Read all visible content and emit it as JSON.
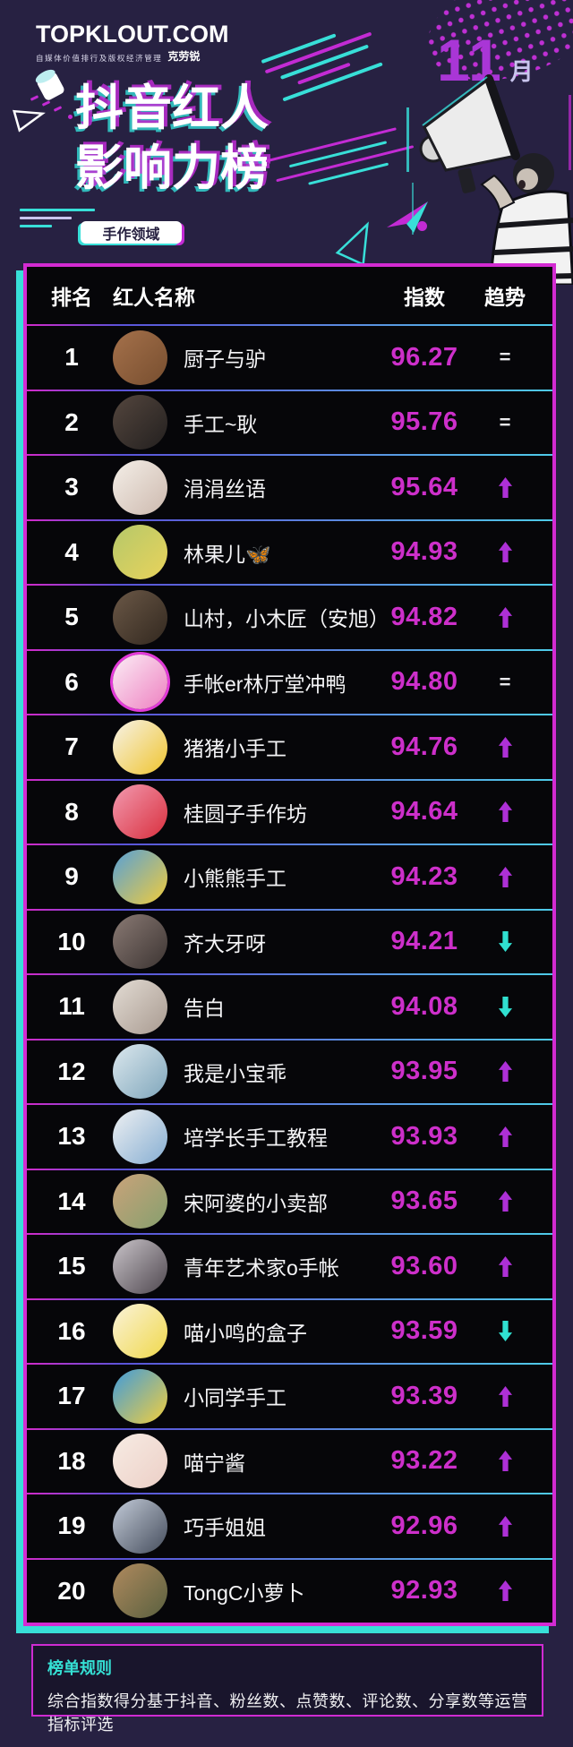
{
  "header": {
    "brand": "TOPKLOUT.COM",
    "brand_tagline": "自媒体价值排行及版权经济管理",
    "brand_suffix": "克劳锐",
    "month_number": "11",
    "month_unit": "月",
    "title_line1": "抖音红人",
    "title_line2": "影响力榜",
    "category_tag": "手作领域"
  },
  "table": {
    "headers": {
      "rank": "排名",
      "name": "红人名称",
      "index": "指数",
      "trend": "趋势"
    },
    "rows": [
      {
        "rank": "1",
        "name": "厨子与驴",
        "index": "96.27",
        "trend": "flat",
        "avatar_colors": [
          "#a5714b",
          "#774e2f"
        ],
        "ring": false
      },
      {
        "rank": "2",
        "name": "手工~耿",
        "index": "95.76",
        "trend": "flat",
        "avatar_colors": [
          "#54463e",
          "#23201f"
        ],
        "ring": false
      },
      {
        "rank": "3",
        "name": "涓涓丝语",
        "index": "95.64",
        "trend": "up",
        "avatar_colors": [
          "#f4efe8",
          "#cdb9ae"
        ],
        "ring": false
      },
      {
        "rank": "4",
        "name": "林果儿🦋",
        "index": "94.93",
        "trend": "up",
        "avatar_colors": [
          "#b5c86a",
          "#e9d35b"
        ],
        "ring": false
      },
      {
        "rank": "5",
        "name": "山村，小木匠（安旭）",
        "index": "94.82",
        "trend": "up",
        "avatar_colors": [
          "#6b5847",
          "#32281f"
        ],
        "ring": false
      },
      {
        "rank": "6",
        "name": "手帐er林厅堂冲鸭",
        "index": "94.80",
        "trend": "flat",
        "avatar_colors": [
          "#fbeef6",
          "#ee7fc0"
        ],
        "ring": true
      },
      {
        "rank": "7",
        "name": "猪猪小手工",
        "index": "94.76",
        "trend": "up",
        "avatar_colors": [
          "#f7f3e9",
          "#efc42e"
        ],
        "ring": false
      },
      {
        "rank": "8",
        "name": "桂圆子手作坊",
        "index": "94.64",
        "trend": "up",
        "avatar_colors": [
          "#f29ab0",
          "#d92f3d"
        ],
        "ring": false
      },
      {
        "rank": "9",
        "name": "小熊熊手工",
        "index": "94.23",
        "trend": "up",
        "avatar_colors": [
          "#56a0d8",
          "#f2cc3b"
        ],
        "ring": false
      },
      {
        "rank": "10",
        "name": "齐大牙呀",
        "index": "94.21",
        "trend": "down",
        "avatar_colors": [
          "#8a7a74",
          "#3c3432"
        ],
        "ring": false
      },
      {
        "rank": "11",
        "name": "告白",
        "index": "94.08",
        "trend": "down",
        "avatar_colors": [
          "#e3dcd4",
          "#a89a90"
        ],
        "ring": false
      },
      {
        "rank": "12",
        "name": "我是小宝乖",
        "index": "93.95",
        "trend": "up",
        "avatar_colors": [
          "#dce8ee",
          "#7fa6bb"
        ],
        "ring": false
      },
      {
        "rank": "13",
        "name": "培学长手工教程",
        "index": "93.93",
        "trend": "up",
        "avatar_colors": [
          "#eef0f2",
          "#86aed2"
        ],
        "ring": false
      },
      {
        "rank": "14",
        "name": "宋阿婆的小卖部",
        "index": "93.65",
        "trend": "up",
        "avatar_colors": [
          "#caa27a",
          "#86a06e"
        ],
        "ring": false
      },
      {
        "rank": "15",
        "name": "青年艺术家o手帐",
        "index": "93.60",
        "trend": "up",
        "avatar_colors": [
          "#c9c4c9",
          "#4f474f"
        ],
        "ring": false
      },
      {
        "rank": "16",
        "name": "喵小鸣的盒子",
        "index": "93.59",
        "trend": "down",
        "avatar_colors": [
          "#faf3da",
          "#f0d84a"
        ],
        "ring": false
      },
      {
        "rank": "17",
        "name": "小同学手工",
        "index": "93.39",
        "trend": "up",
        "avatar_colors": [
          "#3f9bdc",
          "#f3cf3d"
        ],
        "ring": false
      },
      {
        "rank": "18",
        "name": "喵宁酱",
        "index": "93.22",
        "trend": "up",
        "avatar_colors": [
          "#f7ece4",
          "#eccfc6"
        ],
        "ring": false
      },
      {
        "rank": "19",
        "name": "巧手姐姐",
        "index": "92.96",
        "trend": "up",
        "avatar_colors": [
          "#c3cbd8",
          "#454d5c"
        ],
        "ring": false
      },
      {
        "rank": "20",
        "name": "TongC小萝卜",
        "index": "92.93",
        "trend": "up",
        "avatar_colors": [
          "#b08a5e",
          "#59603f"
        ],
        "ring": false
      }
    ]
  },
  "footer": {
    "rules_title": "榜单规则",
    "rules_text": "综合指数得分基于抖音、粉丝数、点赞数、评论数、分享数等运营指标评选"
  },
  "colors": {
    "background": "#272142",
    "panel_bg": "#060609",
    "accent_magenta": "#cb2ed0",
    "accent_cyan": "#35dfd8",
    "index_text": "#cd2fca",
    "trend_up": "#ad30d6",
    "trend_down": "#30e0d0",
    "trend_flat": "#e8e8ec"
  },
  "chart_data": {
    "type": "table",
    "title": "抖音红人影响力榜（11月 · 手作领域）",
    "columns": [
      "排名",
      "红人名称",
      "指数",
      "趋势"
    ],
    "rows": [
      [
        1,
        "厨子与驴",
        96.27,
        "flat"
      ],
      [
        2,
        "手工~耿",
        95.76,
        "flat"
      ],
      [
        3,
        "涓涓丝语",
        95.64,
        "up"
      ],
      [
        4,
        "林果儿🦋",
        94.93,
        "up"
      ],
      [
        5,
        "山村，小木匠（安旭）",
        94.82,
        "up"
      ],
      [
        6,
        "手帐er林厅堂冲鸭",
        94.8,
        "flat"
      ],
      [
        7,
        "猪猪小手工",
        94.76,
        "up"
      ],
      [
        8,
        "桂圆子手作坊",
        94.64,
        "up"
      ],
      [
        9,
        "小熊熊手工",
        94.23,
        "up"
      ],
      [
        10,
        "齐大牙呀",
        94.21,
        "down"
      ],
      [
        11,
        "告白",
        94.08,
        "down"
      ],
      [
        12,
        "我是小宝乖",
        93.95,
        "up"
      ],
      [
        13,
        "培学长手工教程",
        93.93,
        "up"
      ],
      [
        14,
        "宋阿婆的小卖部",
        93.65,
        "up"
      ],
      [
        15,
        "青年艺术家o手帐",
        93.6,
        "up"
      ],
      [
        16,
        "喵小鸣的盒子",
        93.59,
        "down"
      ],
      [
        17,
        "小同学手工",
        93.39,
        "up"
      ],
      [
        18,
        "喵宁酱",
        93.22,
        "up"
      ],
      [
        19,
        "巧手姐姐",
        92.96,
        "up"
      ],
      [
        20,
        "TongC小萝卜",
        92.93,
        "up"
      ]
    ]
  }
}
